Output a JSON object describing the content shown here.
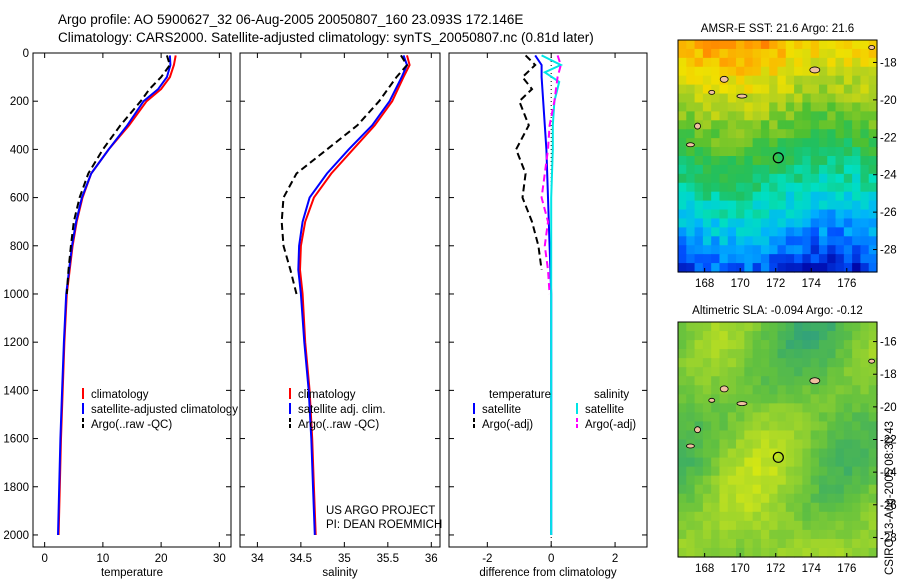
{
  "header": {
    "line1": "Argo profile: AO 5900627_32 06-Aug-2005 20050807_160 23.093S 172.146E",
    "line2": "Climatology: CARS2000. Satellite-adjusted climatology: synTS_20050807.nc (0.81d later)"
  },
  "credit": {
    "line1": "US ARGO PROJECT",
    "line2": "PI: DEAN ROEMMICH"
  },
  "stamp": "CSIRO 13-Aug-2005 08:30:43",
  "colors": {
    "climatology": "#ff0000",
    "satellite": "#0000ff",
    "argo": "#000000",
    "salinity_sat": "#00e5e5",
    "salinity_argo": "#ff00ff"
  },
  "chart_data": [
    {
      "type": "line",
      "xlabel": "temperature",
      "ylabel": "",
      "xlim": [
        -2,
        32
      ],
      "ylim": [
        2050,
        0
      ],
      "y_reversed": true,
      "xticks": [
        0,
        10,
        20,
        30
      ],
      "yticks": [
        0,
        200,
        400,
        600,
        800,
        1000,
        1200,
        1400,
        1600,
        1800,
        2000
      ],
      "legend": "bottom-left",
      "series": [
        {
          "name": "climatology",
          "color": "#ff0000",
          "dash": "solid",
          "x": [
            22.5,
            22.2,
            21.5,
            20.0,
            17.5,
            14.5,
            11.0,
            8.0,
            6.5,
            5.5,
            4.8,
            4.3,
            3.8,
            3.4,
            3.1,
            2.8,
            2.6,
            2.5,
            2.4
          ],
          "y": [
            10,
            50,
            100,
            150,
            200,
            300,
            400,
            500,
            600,
            700,
            800,
            900,
            1000,
            1200,
            1400,
            1600,
            1800,
            1900,
            2000
          ]
        },
        {
          "name": "satellite-adjusted climatology",
          "color": "#0000ff",
          "dash": "solid",
          "x": [
            21.5,
            21.6,
            21.0,
            19.5,
            17.0,
            14.2,
            11.0,
            8.0,
            6.4,
            5.4,
            4.7,
            4.2,
            3.7,
            3.3,
            3.0,
            2.7,
            2.5,
            2.4,
            2.3
          ],
          "y": [
            10,
            50,
            100,
            150,
            200,
            300,
            400,
            500,
            600,
            700,
            800,
            900,
            1000,
            1200,
            1400,
            1600,
            1800,
            1900,
            2000
          ]
        },
        {
          "name": "Argo(..raw -QC)",
          "color": "#000000",
          "dash": "dashed",
          "x": [
            21.0,
            21.5,
            20.0,
            18.0,
            16.5,
            13.0,
            10.0,
            7.5,
            6.0,
            5.0,
            4.5,
            4.1,
            3.8
          ],
          "y": [
            10,
            50,
            100,
            150,
            200,
            300,
            400,
            500,
            600,
            700,
            800,
            900,
            1000
          ]
        }
      ]
    },
    {
      "type": "line",
      "xlabel": "salinity",
      "ylabel": "",
      "xlim": [
        33.8,
        36.1
      ],
      "ylim": [
        2050,
        0
      ],
      "y_reversed": true,
      "xticks": [
        34,
        34.5,
        35,
        35.5,
        36
      ],
      "legend": "bottom-left",
      "series": [
        {
          "name": "climatology",
          "color": "#ff0000",
          "dash": "solid",
          "x": [
            35.72,
            35.75,
            35.68,
            35.55,
            35.35,
            35.1,
            34.85,
            34.65,
            34.55,
            34.5,
            34.49,
            34.52,
            34.55,
            34.6,
            34.63,
            34.65,
            34.66,
            34.67
          ],
          "y": [
            10,
            50,
            100,
            200,
            300,
            400,
            500,
            600,
            700,
            800,
            900,
            1000,
            1200,
            1400,
            1600,
            1800,
            1900,
            2000
          ]
        },
        {
          "name": "satellite adj. clim.",
          "color": "#0000ff",
          "dash": "solid",
          "x": [
            35.68,
            35.72,
            35.66,
            35.52,
            35.32,
            35.05,
            34.8,
            34.6,
            34.52,
            34.48,
            34.47,
            34.5,
            34.54,
            34.59,
            34.62,
            34.64,
            34.65,
            34.66
          ],
          "y": [
            10,
            50,
            100,
            200,
            300,
            400,
            500,
            600,
            700,
            800,
            900,
            1000,
            1200,
            1400,
            1600,
            1800,
            1900,
            2000
          ]
        },
        {
          "name": "Argo(..raw -QC)",
          "color": "#000000",
          "dash": "dashed",
          "x": [
            35.65,
            35.72,
            35.6,
            35.4,
            35.15,
            34.8,
            34.45,
            34.3,
            34.28,
            34.3,
            34.38,
            34.45
          ],
          "y": [
            10,
            50,
            100,
            200,
            300,
            400,
            500,
            600,
            700,
            800,
            900,
            1000
          ]
        }
      ]
    },
    {
      "type": "line",
      "xlabel": "difference from climatology",
      "ylabel": "",
      "xlim": [
        -3.2,
        3.0
      ],
      "ylim": [
        2050,
        0
      ],
      "y_reversed": true,
      "xticks": [
        -2,
        0,
        2
      ],
      "zero_line": "dotted",
      "legend": "bottom-left",
      "legend_titles": [
        "temperature",
        "salinity"
      ],
      "series": [
        {
          "name": "satellite",
          "group": "temperature",
          "color": "#0000ff",
          "dash": "solid",
          "x": [
            -0.5,
            -0.3,
            -0.3,
            -0.25,
            -0.2,
            -0.15,
            -0.1,
            -0.05,
            0.0,
            0.0,
            0.0,
            0.0,
            0.0
          ],
          "y": [
            10,
            50,
            100,
            200,
            300,
            400,
            600,
            800,
            1000,
            1200,
            1400,
            1700,
            2000
          ]
        },
        {
          "name": "Argo(-adj)",
          "group": "temperature",
          "color": "#000000",
          "dash": "dashed",
          "x": [
            -0.8,
            -0.5,
            -0.9,
            -0.6,
            -1.0,
            -0.7,
            -1.1,
            -0.8,
            -0.9,
            -0.6,
            -0.4,
            -0.3
          ],
          "y": [
            10,
            50,
            100,
            150,
            200,
            300,
            400,
            500,
            600,
            700,
            800,
            900
          ]
        },
        {
          "name": "satellite",
          "group": "salinity",
          "color": "#00e5e5",
          "dash": "solid",
          "x": [
            -0.3,
            0.3,
            -0.2,
            0.25,
            0.1,
            0.05,
            0.05,
            0.0,
            0.0,
            0.0,
            0.0,
            0.0
          ],
          "y": [
            10,
            50,
            80,
            120,
            200,
            300,
            400,
            600,
            800,
            1200,
            1600,
            2000
          ]
        },
        {
          "name": "Argo(-adj)",
          "group": "salinity",
          "color": "#ff00ff",
          "dash": "dashed",
          "x": [
            0.2,
            0.3,
            0.2,
            0.1,
            -0.05,
            -0.1,
            -0.2,
            -0.3,
            -0.1,
            -0.2,
            -0.1,
            -0.05
          ],
          "y": [
            10,
            50,
            100,
            200,
            300,
            400,
            500,
            600,
            700,
            800,
            900,
            1000
          ]
        }
      ]
    },
    {
      "type": "heatmap",
      "title": "AMSR-E SST: 21.6 Argo: 21.6",
      "xlim": [
        166.5,
        177.7
      ],
      "ylim": [
        -29.2,
        -16.8
      ],
      "xticks": [
        168,
        170,
        172,
        174,
        176
      ],
      "yticks": [
        -18,
        -20,
        -22,
        -24,
        -26,
        -28
      ],
      "colormap": [
        "#0000a0",
        "#0050ff",
        "#00b0ff",
        "#00e0c0",
        "#20c060",
        "#50c030",
        "#b0d020",
        "#f0e000",
        "#ffa000",
        "#ff5000"
      ],
      "value_range": [
        19.5,
        24.5
      ],
      "profile_marker": {
        "lon": 172.146,
        "lat": -23.093
      }
    },
    {
      "type": "heatmap",
      "title": "Altimetric SLA: -0.094 Argo: -0.12",
      "xlim": [
        166.5,
        177.7
      ],
      "ylim": [
        -29.2,
        -14.8
      ],
      "xticks": [
        168,
        170,
        172,
        174,
        176
      ],
      "yticks": [
        -16,
        -18,
        -20,
        -22,
        -24,
        -26,
        -28
      ],
      "colormap": [
        "#30a080",
        "#40b060",
        "#60c040",
        "#90d030",
        "#c0e020",
        "#f0f000"
      ],
      "value_range": [
        -0.2,
        0.1
      ],
      "profile_marker": {
        "lon": 172.146,
        "lat": -23.093
      }
    }
  ]
}
